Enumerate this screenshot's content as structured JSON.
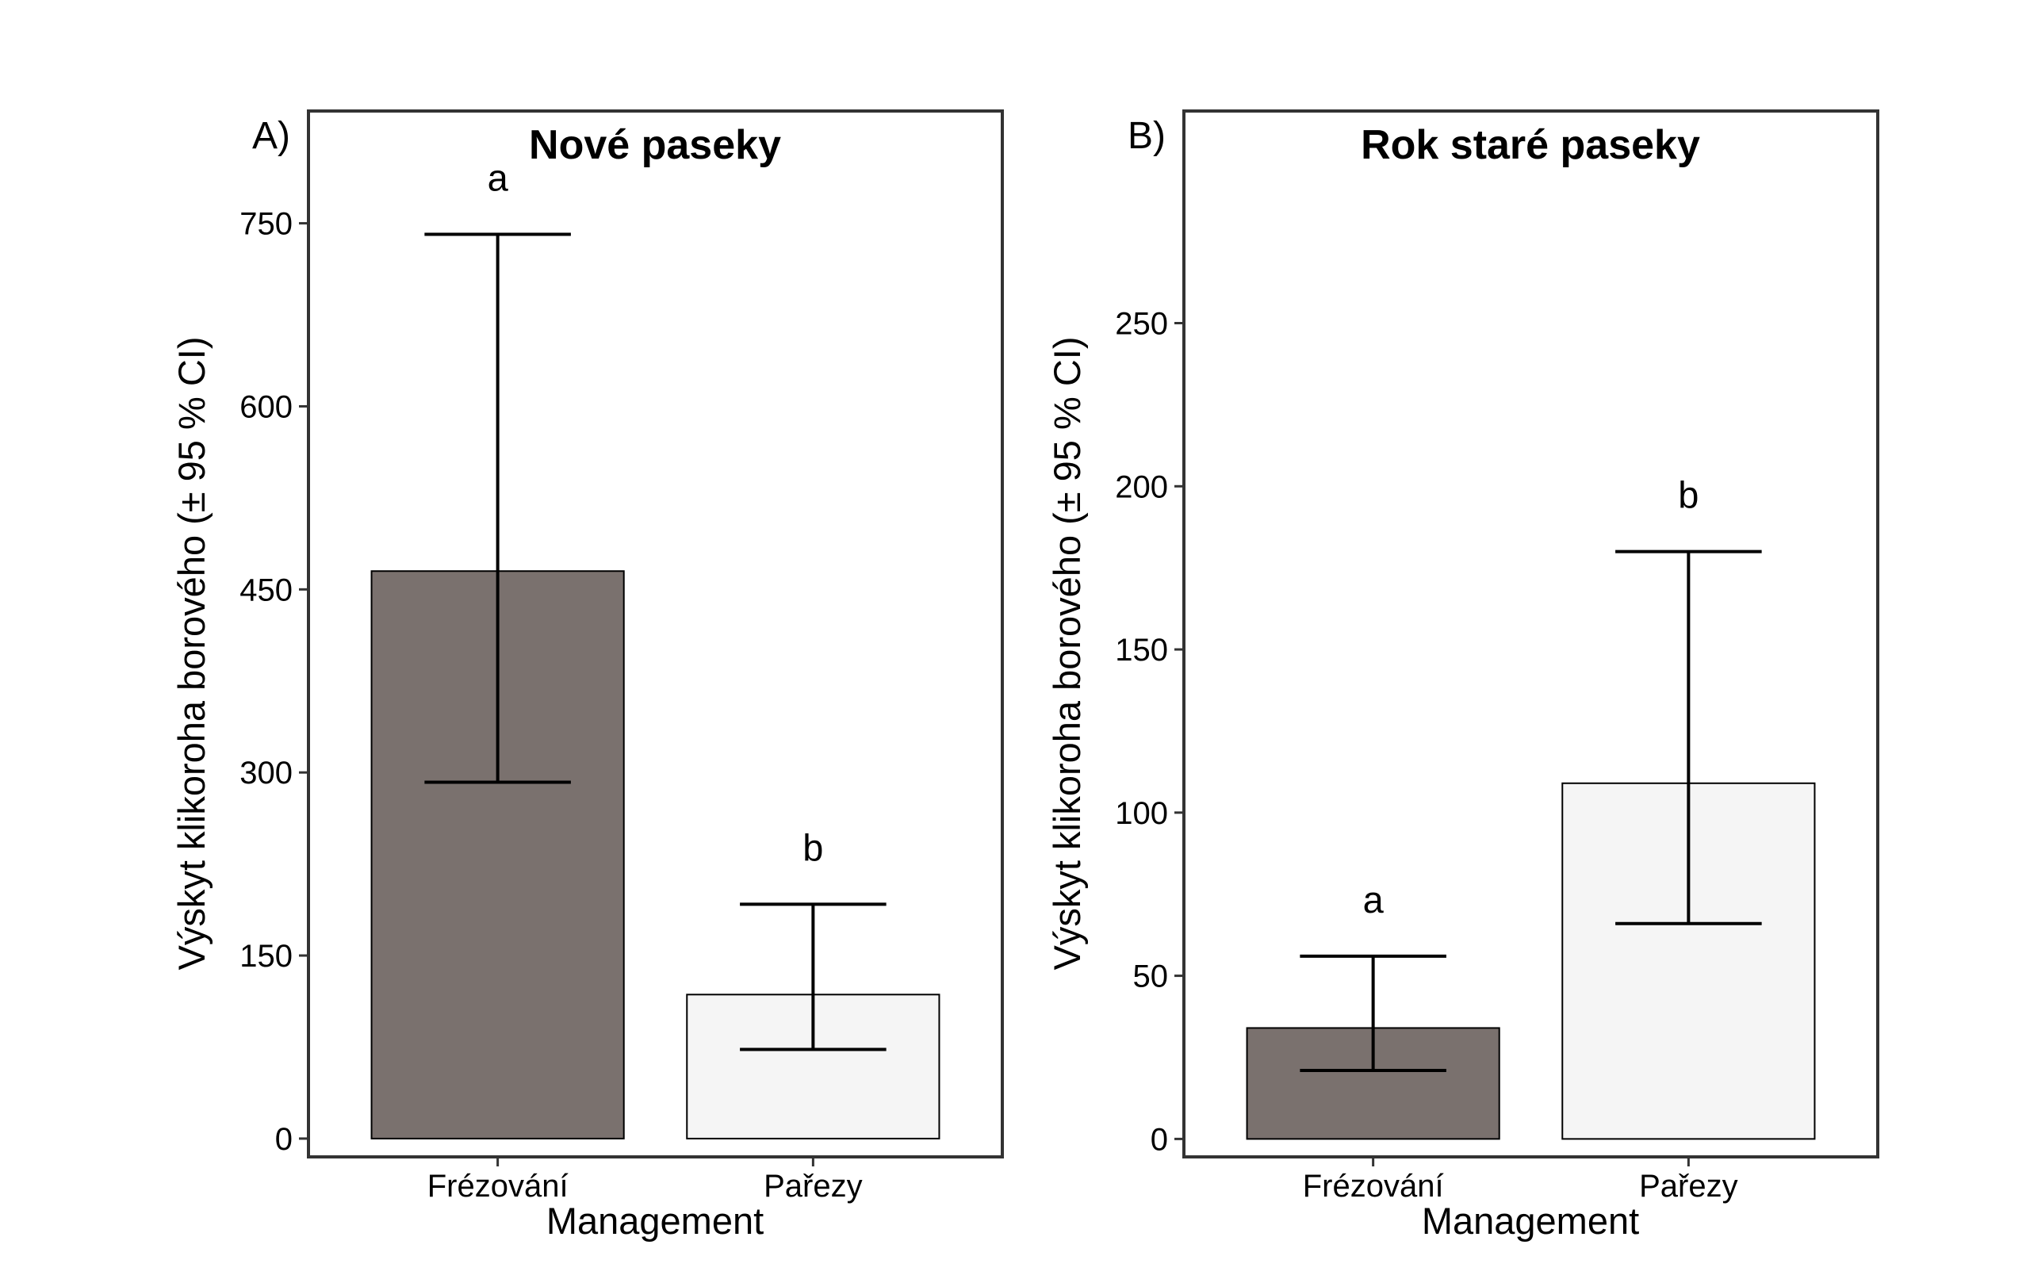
{
  "chart_data": [
    {
      "type": "bar",
      "panel_label": "A)",
      "title": "Nové paseky",
      "xlabel": "Management",
      "ylabel": "Výskyt klikoroha borového (± 95 % CI)",
      "categories": [
        "Frézování",
        "Pařezy"
      ],
      "values": [
        465,
        118
      ],
      "ci_lower": [
        292,
        73
      ],
      "ci_upper": [
        741,
        192
      ],
      "significance_letters": [
        "a",
        "b"
      ],
      "bar_colors": [
        "#7a716e",
        "#f5f5f5"
      ],
      "yticks": [
        0,
        150,
        300,
        450,
        600,
        750
      ],
      "yticklabels": [
        "0",
        "150",
        "300",
        "450",
        "600",
        "750"
      ],
      "ylim": [
        -15,
        842
      ],
      "grid": false,
      "legend": "none"
    },
    {
      "type": "bar",
      "panel_label": "B)",
      "title": "Rok staré paseky",
      "xlabel": "Management",
      "ylabel": "Výskyt klikoroha borového (± 95 % CI)",
      "categories": [
        "Frézování",
        "Pařezy"
      ],
      "values": [
        34,
        109
      ],
      "ci_lower": [
        21,
        66
      ],
      "ci_upper": [
        56,
        180
      ],
      "significance_letters": [
        "a",
        "b"
      ],
      "bar_colors": [
        "#7a716e",
        "#f5f5f5"
      ],
      "yticks": [
        0,
        50,
        100,
        150,
        200,
        250
      ],
      "yticklabels": [
        "0",
        "50",
        "100",
        "150",
        "200",
        "250"
      ],
      "ylim": [
        -5.5,
        315
      ],
      "grid": false,
      "legend": "none"
    }
  ]
}
